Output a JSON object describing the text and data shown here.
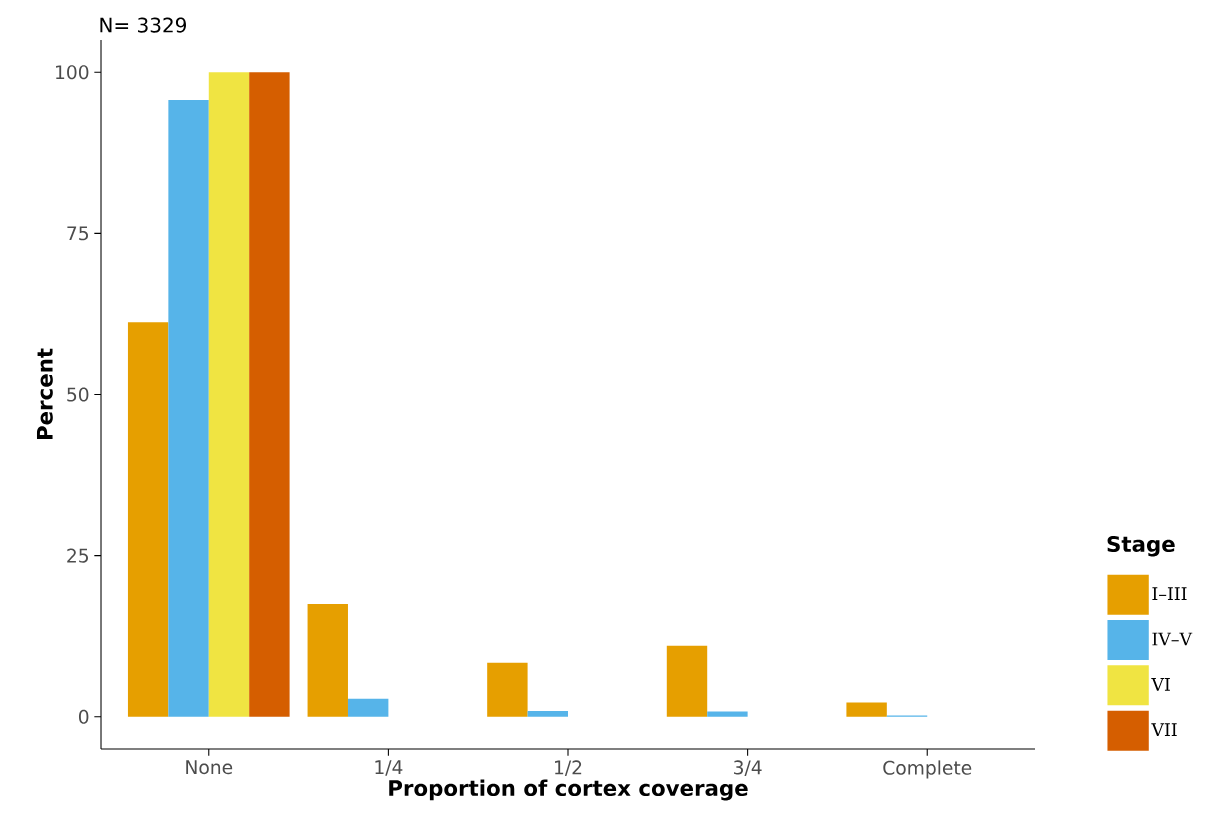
{
  "chart_data": {
    "type": "bar",
    "xlabel": "Proportion of cortex coverage",
    "ylabel": "Percent",
    "legend_title": "Stage",
    "categories": [
      "None",
      "1/4",
      "1/2",
      "3/4",
      "Complete"
    ],
    "series": [
      {
        "name": "I–III",
        "color": "#e69f00",
        "values": [
          61.2,
          17.5,
          8.4,
          11.0,
          2.2
        ]
      },
      {
        "name": "IV–V",
        "color": "#56b4e9",
        "values": [
          95.7,
          2.8,
          0.9,
          0.8,
          0.2
        ]
      },
      {
        "name": "VI",
        "color": "#f0e442",
        "values": [
          100,
          0,
          0,
          0,
          0
        ]
      },
      {
        "name": "VII",
        "color": "#d55e00",
        "values": [
          100,
          0,
          0,
          0,
          0
        ]
      }
    ],
    "ylim": [
      -5,
      105
    ],
    "yticks": [
      0,
      25,
      50,
      75,
      100
    ],
    "grid": false,
    "legend": "right",
    "annotations": [
      "N=  3329"
    ]
  }
}
